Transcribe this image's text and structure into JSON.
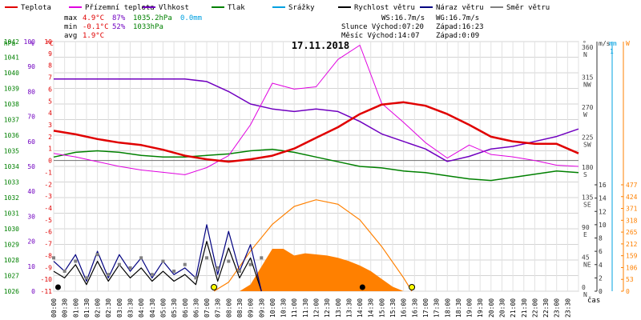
{
  "chart_data": {
    "type": "line",
    "title": "17.11.2018",
    "xlabel": "čas",
    "legend": [
      {
        "name": "Teplota",
        "color": "#e00000"
      },
      {
        "name": "Přízemní teplota",
        "color": "#e000e0"
      },
      {
        "name": "Vlhkost",
        "color": "#7000c0"
      },
      {
        "name": "Tlak",
        "color": "#008000"
      },
      {
        "name": "Srážky",
        "color": "#00a0e0"
      },
      {
        "name": "Rychlost větru",
        "color": "#000000"
      },
      {
        "name": "Náraz větru",
        "color": "#000080"
      },
      {
        "name": "Směr větru",
        "color": "#808080"
      }
    ],
    "stats": {
      "max": {
        "label": "max",
        "temp": "4.9°C",
        "hum": "87%",
        "press": "1035.2hPa",
        "rain": "0.0mm"
      },
      "min": {
        "label": "min",
        "temp": "-0.1°C",
        "hum": "52%",
        "press": "1033hPa"
      },
      "avg": {
        "label": "avg",
        "temp": "1.9°C"
      }
    },
    "info": {
      "ws": "WS:16.7m/s",
      "wg": "WG:16.7m/s",
      "sun_rise": "Slunce Východ:07:20",
      "sun_set": "Západ:16:23",
      "moon_rise": "Měsíc  Východ:14:07",
      "moon_set": "Západ:0:09"
    },
    "axes": {
      "pressure": {
        "unit": "hPa",
        "ticks": [
          "1042",
          "1041",
          "1040",
          "1039",
          "1038",
          "1037",
          "1036",
          "1035",
          "1034",
          "1033",
          "1032",
          "1031",
          "1030",
          "1029",
          "1028",
          "1027",
          "1026"
        ]
      },
      "humidity": {
        "unit": "%",
        "ticks": [
          "100",
          "90",
          "80",
          "70",
          "60",
          "50",
          "40",
          "30",
          "20",
          "10",
          "0"
        ]
      },
      "temperature": {
        "unit": "°C",
        "ticks": [
          "10",
          "9",
          "8",
          "7",
          "6",
          "5",
          "4",
          "3",
          "2",
          "1",
          "0",
          "-1",
          "-2",
          "-3",
          "-4",
          "-5",
          "-6",
          "-7",
          "-8",
          "-9",
          "-10",
          "-11"
        ]
      },
      "direction": {
        "unit": "°",
        "ticks": [
          "360",
          "315",
          "270",
          "225",
          "180",
          "135",
          "90",
          "45",
          "0"
        ],
        "labels": [
          "N",
          "NW",
          "W",
          "SW",
          "S",
          "SE",
          "E",
          "NE",
          "N"
        ]
      },
      "wind": {
        "unit": "m/s",
        "ticks": [
          "16",
          "14",
          "12",
          "10",
          "8",
          "6",
          "4",
          "2",
          "0"
        ]
      },
      "rain": {
        "unit": "mm",
        "ticks": [
          "1"
        ]
      },
      "solar": {
        "unit": "W",
        "ticks": [
          "477",
          "424",
          "371",
          "318",
          "265",
          "212",
          "159",
          "106",
          "53",
          "0"
        ]
      },
      "x_ticks": [
        "00:00",
        "00:30",
        "01:00",
        "01:30",
        "02:00",
        "02:30",
        "03:00",
        "03:30",
        "04:00",
        "04:30",
        "05:00",
        "05:30",
        "06:00",
        "06:30",
        "07:00",
        "07:30",
        "08:00",
        "08:30",
        "09:00",
        "09:30",
        "10:00",
        "10:30",
        "11:00",
        "11:30",
        "12:00",
        "12:30",
        "13:00",
        "13:30",
        "14:00",
        "14:30",
        "15:00",
        "15:30",
        "16:00",
        "16:30",
        "17:00",
        "17:30",
        "18:00",
        "18:30",
        "19:00",
        "19:30",
        "20:00",
        "20:30",
        "21:00",
        "21:30",
        "22:00",
        "22:30",
        "23:00",
        "23:30"
      ]
    },
    "series": [
      {
        "name": "Teplota",
        "unit": "°C",
        "color": "#e00000",
        "x": [
          0,
          1,
          2,
          3,
          4,
          5,
          6,
          7,
          8,
          9,
          10,
          11,
          12,
          13,
          14,
          15,
          16,
          17,
          18,
          19,
          20,
          21,
          22,
          23,
          24
        ],
        "y": [
          2.5,
          2.2,
          1.8,
          1.5,
          1.3,
          0.9,
          0.4,
          0.1,
          -0.1,
          0.1,
          0.4,
          1.0,
          1.9,
          2.8,
          3.9,
          4.7,
          4.9,
          4.6,
          3.9,
          3.0,
          2.0,
          1.6,
          1.4,
          1.4,
          0.6
        ]
      },
      {
        "name": "Přízemní teplota",
        "unit": "°C",
        "color": "#e000e0",
        "x": [
          0,
          1,
          2,
          3,
          4,
          5,
          6,
          7,
          8,
          9,
          10,
          11,
          12,
          13,
          14,
          15,
          16,
          17,
          18,
          19,
          20,
          21,
          22,
          23,
          24
        ],
        "y": [
          0.6,
          0.3,
          -0.1,
          -0.5,
          -0.8,
          -1.0,
          -1.2,
          -0.6,
          0.4,
          3.0,
          6.5,
          6.0,
          6.2,
          8.5,
          9.7,
          4.8,
          3.2,
          1.5,
          0.2,
          1.3,
          0.5,
          0.3,
          0.0,
          -0.4,
          -0.5
        ]
      },
      {
        "name": "Vlhkost",
        "unit": "%",
        "color": "#7000c0",
        "x": [
          0,
          1,
          2,
          3,
          4,
          5,
          6,
          7,
          8,
          9,
          10,
          11,
          12,
          13,
          14,
          15,
          16,
          17,
          18,
          19,
          20,
          21,
          22,
          23,
          24
        ],
        "y": [
          85,
          85,
          85,
          85,
          85,
          85,
          85,
          84,
          80,
          75,
          73,
          72,
          73,
          72,
          68,
          63,
          60,
          57,
          52,
          54,
          57,
          58,
          60,
          62,
          65
        ]
      },
      {
        "name": "Tlak",
        "unit": "hPa",
        "color": "#008000",
        "x": [
          0,
          1,
          2,
          3,
          4,
          5,
          6,
          7,
          8,
          9,
          10,
          11,
          12,
          13,
          14,
          15,
          16,
          17,
          18,
          19,
          20,
          21,
          22,
          23,
          24
        ],
        "y": [
          1034.6,
          1034.9,
          1035.0,
          1034.9,
          1034.7,
          1034.6,
          1034.6,
          1034.7,
          1034.8,
          1035.0,
          1035.1,
          1034.9,
          1034.6,
          1034.3,
          1034.0,
          1033.9,
          1033.7,
          1033.6,
          1033.4,
          1033.2,
          1033.1,
          1033.3,
          1033.5,
          1033.7,
          1033.6
        ]
      },
      {
        "name": "Náraz větru",
        "unit": "m/s",
        "color": "#000080",
        "x": [
          0,
          0.5,
          1,
          1.5,
          2,
          2.5,
          3,
          3.5,
          4,
          4.5,
          5,
          5.5,
          6,
          6.5,
          7,
          7.5,
          8,
          8.5,
          9,
          9.5
        ],
        "y": [
          4.5,
          3.0,
          5.5,
          1.5,
          6.0,
          2.0,
          5.5,
          3.0,
          5.0,
          2.0,
          4.5,
          2.5,
          3.5,
          2.0,
          10.0,
          2.5,
          9.0,
          3.0,
          7.0,
          0
        ]
      },
      {
        "name": "Rychlost větru",
        "unit": "m/s",
        "color": "#000000",
        "x": [
          0,
          0.5,
          1,
          1.5,
          2,
          2.5,
          3,
          3.5,
          4,
          4.5,
          5,
          5.5,
          6,
          6.5,
          7,
          7.5,
          8,
          8.5,
          9,
          9.5
        ],
        "y": [
          3.0,
          2.0,
          4.0,
          1.0,
          4.5,
          1.5,
          4.0,
          2.0,
          3.5,
          1.5,
          3.0,
          1.5,
          2.5,
          1.0,
          7.5,
          1.5,
          6.5,
          2.0,
          5.0,
          0
        ]
      },
      {
        "name": "Sluneční záření",
        "unit": "W",
        "color": "#ff8000",
        "x": [
          8.5,
          9,
          9.5,
          10,
          10.5,
          11,
          11.5,
          12,
          12.5,
          13,
          13.5,
          14,
          14.5,
          15,
          15.5,
          16
        ],
        "y": [
          0,
          30,
          110,
          190,
          190,
          160,
          170,
          165,
          160,
          150,
          135,
          115,
          90,
          55,
          20,
          0
        ]
      },
      {
        "name": "Max. sluneční záření",
        "unit": "W",
        "color": "#ff8000",
        "x": [
          7.33,
          8,
          9,
          10,
          11,
          12,
          13,
          14,
          15,
          16,
          16.38
        ],
        "y": [
          0,
          40,
          180,
          300,
          380,
          410,
          390,
          320,
          200,
          60,
          0
        ]
      },
      {
        "name": "Směr větru",
        "unit": "°",
        "color": "#808080",
        "x": [
          0,
          0.5,
          1,
          1.5,
          2,
          2.5,
          3,
          3.5,
          4,
          4.5,
          5,
          5.5,
          6,
          6.5,
          7,
          7.5,
          8,
          8.5,
          9,
          9.5
        ],
        "y": [
          50,
          30,
          45,
          20,
          55,
          25,
          40,
          35,
          50,
          25,
          45,
          30,
          40,
          20,
          50,
          35,
          45,
          30,
          40,
          50
        ]
      }
    ]
  }
}
